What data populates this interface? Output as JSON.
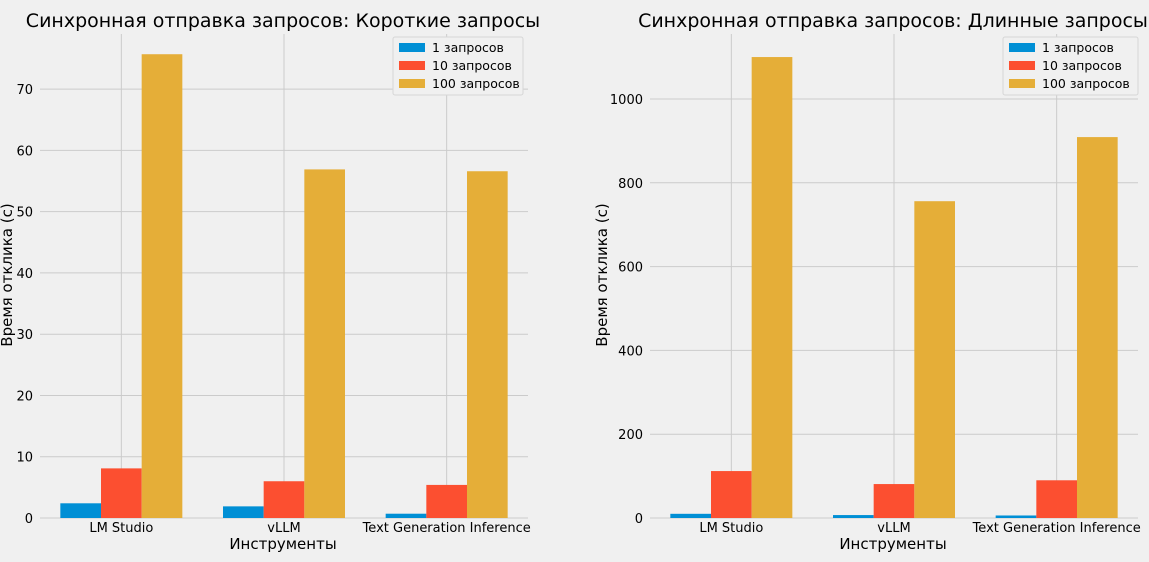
{
  "colors": {
    "background": "#f0f0f0",
    "grid": "#cbcbcb",
    "series": [
      "#008fd5",
      "#fc4f30",
      "#e5ae38"
    ]
  },
  "chart_data": [
    {
      "type": "bar",
      "title": "Синхронная отправка запросов: Короткие запросы",
      "xlabel": "Инструменты",
      "ylabel": "Время отклика (с)",
      "categories": [
        "LM Studio",
        "vLLM",
        "Text Generation Inference"
      ],
      "series": [
        {
          "name": "1 запросов",
          "values": [
            2.4,
            1.9,
            0.7
          ]
        },
        {
          "name": "10 запросов",
          "values": [
            8.1,
            6.0,
            5.4
          ]
        },
        {
          "name": "100 запросов",
          "values": [
            75.7,
            56.9,
            56.6
          ]
        }
      ],
      "ylim": [
        0,
        79
      ],
      "yticks": [
        0,
        10,
        20,
        30,
        40,
        50,
        60,
        70
      ],
      "grid": true,
      "legend_position": "top-right"
    },
    {
      "type": "bar",
      "title": "Синхронная отправка запросов: Длинные запросы",
      "xlabel": "Инструменты",
      "ylabel": "Время отклика (с)",
      "categories": [
        "LM Studio",
        "vLLM",
        "Text Generation Inference"
      ],
      "series": [
        {
          "name": "1 запросов",
          "values": [
            10,
            7,
            6
          ]
        },
        {
          "name": "10 запросов",
          "values": [
            112,
            81,
            90
          ]
        },
        {
          "name": "100 запросов",
          "values": [
            1100,
            756,
            909
          ]
        }
      ],
      "ylim": [
        0,
        1155
      ],
      "yticks": [
        0,
        200,
        400,
        600,
        800,
        1000
      ],
      "grid": true,
      "legend_position": "top-right"
    }
  ]
}
